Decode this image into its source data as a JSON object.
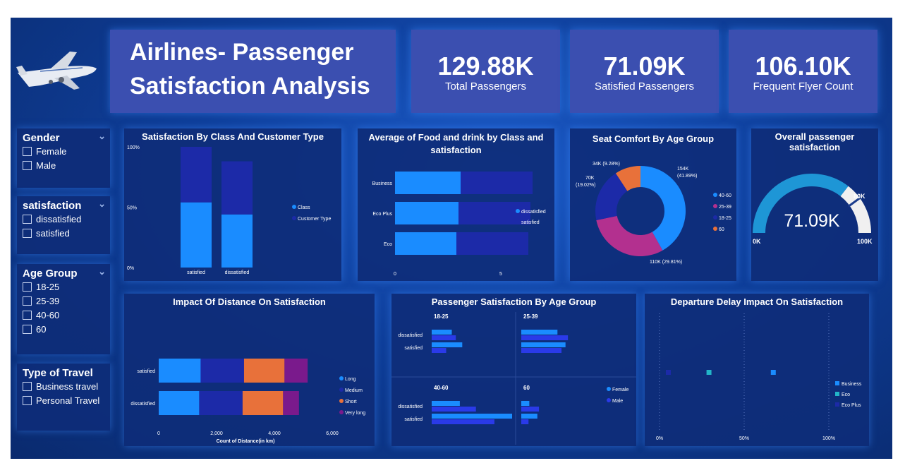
{
  "header": {
    "title_line1": "Airlines- Passenger",
    "title_line2": "Satisfaction Analysis"
  },
  "kpis": [
    {
      "value": "129.88K",
      "label": "Total Passengers"
    },
    {
      "value": "71.09K",
      "label": "Satisfied Passengers"
    },
    {
      "value": "106.10K",
      "label": "Frequent Flyer Count"
    }
  ],
  "slicers": {
    "gender": {
      "title": "Gender",
      "options": [
        "Female",
        "Male"
      ]
    },
    "satisfaction": {
      "title": "satisfaction",
      "options": [
        "dissatisfied",
        "satisfied"
      ]
    },
    "age_group": {
      "title": "Age Group",
      "options": [
        "18-25",
        "25-39",
        "40-60",
        "60"
      ]
    },
    "travel_type": {
      "title": "Type of Travel",
      "options": [
        "Business travel",
        "Personal Travel"
      ]
    }
  },
  "colors": {
    "light_blue": "#1a8cff",
    "dark_blue": "#1c2aa8",
    "orange": "#e8713a",
    "purple": "#7a1a8c",
    "magenta": "#b3308f",
    "teal": "#22b5c8"
  },
  "chart_data": [
    {
      "type": "bar",
      "title": "Satisfaction By Class And Customer Type",
      "categories": [
        "satisfied",
        "dissatisfied"
      ],
      "stacked_percent": true,
      "series": [
        {
          "name": "Class",
          "values": [
            54,
            44
          ]
        },
        {
          "name": "Customer Type",
          "values": [
            46,
            44
          ]
        }
      ],
      "ytick_labels": [
        "100%",
        "50%",
        "0%"
      ]
    },
    {
      "type": "bar",
      "orientation": "horizontal",
      "title_line1": "Average of Food and drink by Class and",
      "title_line2": "satisfaction",
      "categories": [
        "Business",
        "Eco Plus",
        "Eco"
      ],
      "series": [
        {
          "name": "dissatisfied",
          "values": [
            3.1,
            3.0,
            2.9
          ]
        },
        {
          "name": "satisfied",
          "values": [
            3.4,
            3.4,
            3.4
          ]
        }
      ],
      "xtick_labels": [
        "0",
        "5"
      ],
      "xlim": [
        0,
        7
      ]
    },
    {
      "type": "pie",
      "donut": true,
      "title": "Seat Comfort By Age Group",
      "slices": [
        {
          "name": "40-60",
          "value": 154,
          "label": "154K (41.89%)"
        },
        {
          "name": "25-39",
          "value": 110,
          "label": "110K (29.81%)"
        },
        {
          "name": "18-25",
          "value": 70,
          "label": "70K (19.02%)",
          "label_line1": "70K",
          "label_line2": "(19.02%)"
        },
        {
          "name": "60",
          "value": 34,
          "label": "34K (9.28%)"
        }
      ]
    },
    {
      "type": "gauge",
      "title": "Overall passenger satisfaction",
      "value": 71.09,
      "target": 80,
      "max": 100,
      "value_label": "71.09K",
      "min_label": "0K",
      "max_label": "100K",
      "target_label": "80K"
    },
    {
      "type": "bar",
      "orientation": "horizontal",
      "title": "Impact Of Distance On Satisfaction",
      "categories": [
        "satisfied",
        "dissatisfied"
      ],
      "series": [
        {
          "name": "Long",
          "values": [
            1450,
            1400
          ]
        },
        {
          "name": "Medium",
          "values": [
            1500,
            1500
          ]
        },
        {
          "name": "Short",
          "values": [
            1400,
            1400
          ]
        },
        {
          "name": "Very long",
          "values": [
            800,
            550
          ]
        }
      ],
      "xtick_labels": [
        "0",
        "2,000",
        "4,000",
        "6,000"
      ],
      "xlim": [
        0,
        6000
      ],
      "xlabel": "Count of Distance(in km)"
    },
    {
      "type": "bar",
      "orientation": "horizontal",
      "title": "Passenger Satisfaction By Age Group",
      "legend": [
        "Female",
        "Male"
      ],
      "xlim": [
        0,
        1
      ],
      "panels": [
        {
          "name": "18-25",
          "categories": [
            "dissatisfied",
            "satisfied"
          ],
          "female": [
            0.25,
            0.38
          ],
          "male": [
            0.3,
            0.18
          ]
        },
        {
          "name": "25-39",
          "categories": [
            "dissatisfied",
            "satisfied"
          ],
          "female": [
            0.45,
            0.55
          ],
          "male": [
            0.58,
            0.5
          ]
        },
        {
          "name": "40-60",
          "categories": [
            "dissatisfied",
            "satisfied"
          ],
          "female": [
            0.35,
            1.0
          ],
          "male": [
            0.55,
            0.78
          ]
        },
        {
          "name": "60",
          "categories": [
            "dissatisfied",
            "satisfied"
          ],
          "female": [
            0.1,
            0.2
          ],
          "male": [
            0.22,
            0.09
          ]
        }
      ]
    },
    {
      "type": "scatter",
      "title": "Departure Delay Impact On Satisfaction",
      "series": [
        {
          "name": "Business",
          "x": [
            67
          ],
          "y": [
            0.5
          ]
        },
        {
          "name": "Eco",
          "x": [
            29
          ],
          "y": [
            0.5
          ]
        },
        {
          "name": "Eco Plus",
          "x": [
            5
          ],
          "y": [
            0.5
          ]
        }
      ],
      "xtick_labels": [
        "0%",
        "50%",
        "100%"
      ],
      "xlim": [
        0,
        100
      ]
    }
  ]
}
